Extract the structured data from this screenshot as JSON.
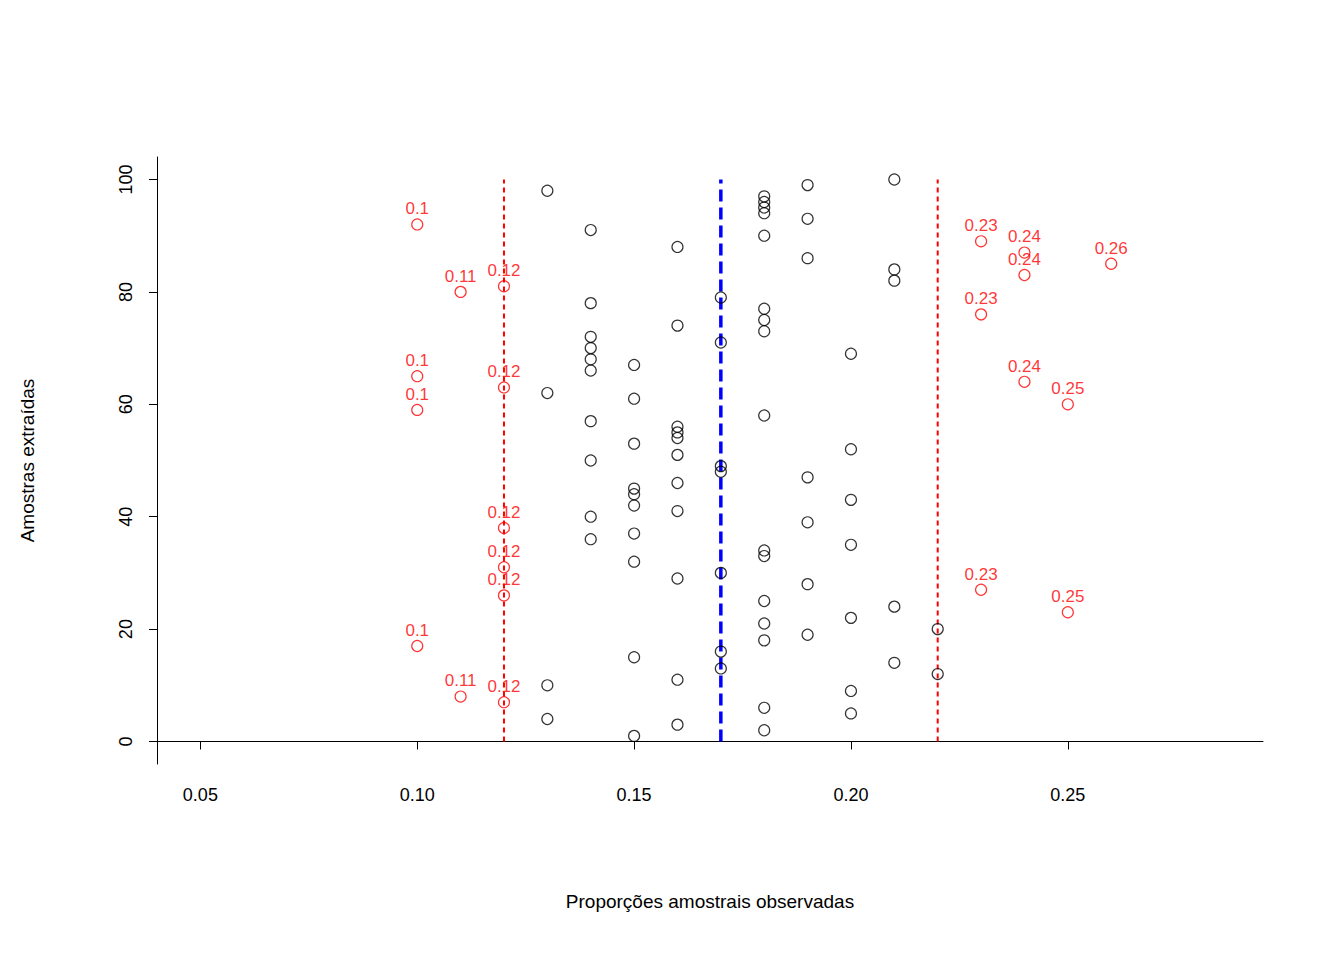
{
  "chart_data": {
    "type": "scatter",
    "x_label": "Proporções amostrais observadas",
    "y_label": "Amostras extraídas",
    "xlim": [
      0.04,
      0.295
    ],
    "ylim": [
      -4,
      104
    ],
    "xticks": [
      0.05,
      {
        "value": 0.1,
        "label": "0.10"
      },
      0.15,
      {
        "value": 0.2,
        "label": "0.20"
      },
      0.25
    ],
    "yticks": [
      0,
      20,
      40,
      60,
      80,
      100
    ],
    "series": [
      {
        "color": "#000000",
        "marker": "open_circle",
        "x": [
          0.15,
          0.18,
          0.16,
          0.13,
          0.2,
          0.18,
          0.2,
          0.13,
          0.16,
          0.22,
          0.17,
          0.21,
          0.15,
          0.17,
          0.18,
          0.19,
          0.22,
          0.18,
          0.2,
          0.21,
          0.18,
          0.19,
          0.16,
          0.17,
          0.15,
          0.18,
          0.18,
          0.2,
          0.14,
          0.15,
          0.19,
          0.14,
          0.16,
          0.15,
          0.2,
          0.15,
          0.15,
          0.16,
          0.19,
          0.17,
          0.17,
          0.14,
          0.16,
          0.2,
          0.15,
          0.16,
          0.16,
          0.16,
          0.14,
          0.18,
          0.15,
          0.13,
          0.14,
          0.15,
          0.14,
          0.2,
          0.14,
          0.17,
          0.14,
          0.18,
          0.16,
          0.18,
          0.18,
          0.14,
          0.17,
          0.21,
          0.21,
          0.19,
          0.16,
          0.18,
          0.14,
          0.19,
          0.18,
          0.18,
          0.18,
          0.18,
          0.13,
          0.19,
          0.21
        ],
        "y": [
          1,
          2,
          3,
          4,
          5,
          6,
          9,
          10,
          11,
          12,
          13,
          14,
          15,
          16,
          18,
          19,
          20,
          21,
          22,
          24,
          25,
          28,
          29,
          30,
          32,
          33,
          34,
          35,
          36,
          37,
          39,
          40,
          41,
          42,
          43,
          44,
          45,
          46,
          47,
          48,
          49,
          50,
          51,
          52,
          53,
          54,
          55,
          56,
          57,
          58,
          61,
          62,
          66,
          67,
          68,
          69,
          70,
          71,
          72,
          73,
          74,
          75,
          77,
          78,
          79,
          82,
          84,
          86,
          88,
          90,
          91,
          93,
          94,
          95,
          96,
          97,
          98,
          99,
          100
        ]
      },
      {
        "color": "#ff0000",
        "marker": "open_circle",
        "data_labels": true,
        "x": [
          0.12,
          0.11,
          0.1,
          0.25,
          0.12,
          0.23,
          0.12,
          0.12,
          0.1,
          0.25,
          0.12,
          0.24,
          0.1,
          0.23,
          0.11,
          0.12,
          0.24,
          0.26,
          0.24,
          0.23,
          0.1
        ],
        "y": [
          7,
          8,
          17,
          23,
          26,
          27,
          31,
          38,
          59,
          60,
          63,
          64,
          65,
          76,
          80,
          81,
          83,
          85,
          87,
          89,
          92
        ]
      }
    ],
    "vlines": [
      {
        "x": 0.12,
        "y": [
          0,
          100
        ],
        "color": "#ff0000",
        "line_style": "dashed"
      },
      {
        "x": 0.17,
        "y": [
          0,
          100
        ],
        "color": "#0000ff",
        "line_style": "longdash"
      },
      {
        "x": 0.22,
        "y": [
          0,
          100
        ],
        "color": "#ff0000",
        "line_style": "dashed"
      }
    ]
  }
}
